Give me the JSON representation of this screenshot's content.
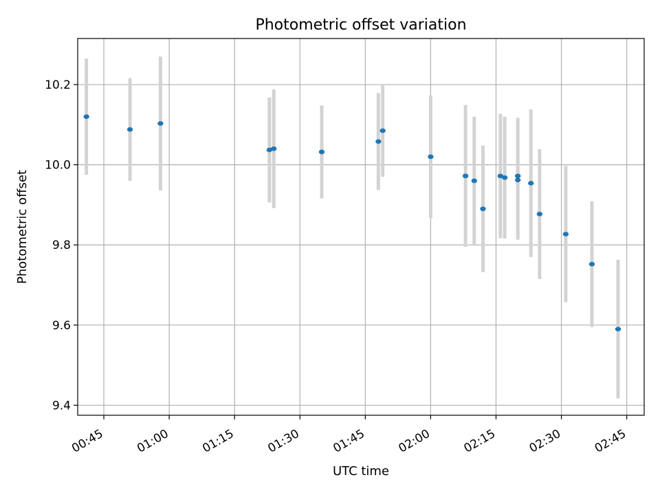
{
  "chart_data": {
    "type": "scatter",
    "title": "Photometric offset variation",
    "xlabel": "UTC time",
    "ylabel": "Photometric offset",
    "x_axis_kind": "time",
    "xlim": [
      "00:39",
      "02:49"
    ],
    "ylim": [
      9.375,
      10.315
    ],
    "x_ticks": [
      "00:45",
      "01:00",
      "01:15",
      "01:30",
      "01:45",
      "02:00",
      "02:15",
      "02:30",
      "02:45"
    ],
    "y_ticks": [
      9.4,
      9.6,
      9.8,
      10.0,
      10.2
    ],
    "y_tick_labels": [
      "9.4",
      "9.6",
      "9.8",
      "10.0",
      "10.2"
    ],
    "grid": true,
    "point_color": "#1f77b4",
    "errorbar_color": "#d3d3d3",
    "points": [
      {
        "x": "00:41",
        "y": 10.12,
        "err": 0.145
      },
      {
        "x": "00:51",
        "y": 10.088,
        "err": 0.128
      },
      {
        "x": "00:58",
        "y": 10.103,
        "err": 0.167
      },
      {
        "x": "01:23",
        "y": 10.037,
        "err": 0.131
      },
      {
        "x": "01:24",
        "y": 10.04,
        "err": 0.148
      },
      {
        "x": "01:35",
        "y": 10.032,
        "err": 0.116
      },
      {
        "x": "01:48",
        "y": 10.058,
        "err": 0.121
      },
      {
        "x": "01:49",
        "y": 10.085,
        "err": 0.115
      },
      {
        "x": "02:00",
        "y": 10.02,
        "err": 0.153
      },
      {
        "x": "02:08",
        "y": 9.972,
        "err": 0.177
      },
      {
        "x": "02:10",
        "y": 9.96,
        "err": 0.16
      },
      {
        "x": "02:12",
        "y": 9.89,
        "err": 0.158
      },
      {
        "x": "02:16",
        "y": 9.972,
        "err": 0.155
      },
      {
        "x": "02:17",
        "y": 9.968,
        "err": 0.152
      },
      {
        "x": "02:20",
        "y": 9.962,
        "err": 0.149
      },
      {
        "x": "02:20",
        "y": 9.972,
        "err": 0.145
      },
      {
        "x": "02:23",
        "y": 9.954,
        "err": 0.184
      },
      {
        "x": "02:25",
        "y": 9.877,
        "err": 0.162
      },
      {
        "x": "02:31",
        "y": 9.827,
        "err": 0.17
      },
      {
        "x": "02:37",
        "y": 9.752,
        "err": 0.157
      },
      {
        "x": "02:43",
        "y": 9.59,
        "err": 0.173
      }
    ]
  }
}
